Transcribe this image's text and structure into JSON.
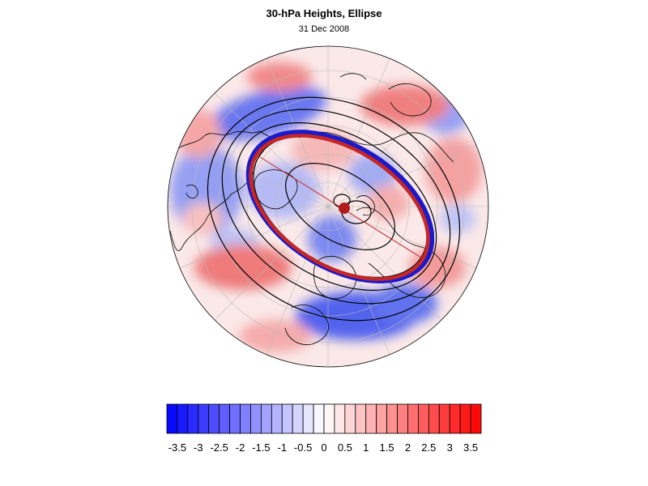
{
  "header": {
    "title": "30-hPa Heights, Ellipse",
    "date": "31 Dec 2008"
  },
  "colorbar": {
    "min": -3.75,
    "max": 3.75,
    "step": 0.25,
    "labels": [
      "-3.5",
      "-3",
      "-2.5",
      "-2",
      "-1.5",
      "-1",
      "-0.5",
      "0",
      "0.5",
      "1",
      "1.5",
      "2",
      "2.5",
      "3",
      "3.5"
    ],
    "negative_color": "#0000ff",
    "positive_color": "#ff0000"
  },
  "map": {
    "projection": "north polar orthographic",
    "ellipse_colors": {
      "outer": "#0000cc",
      "inner": "#cc2222",
      "center": "#b01c1c"
    },
    "contour_color": "#000000"
  }
}
